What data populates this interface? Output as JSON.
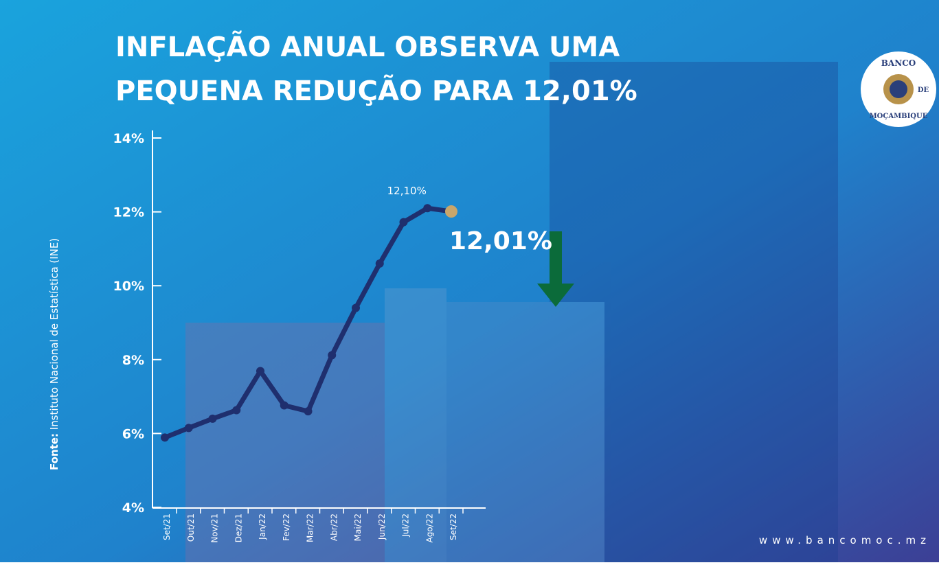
{
  "chart_data": {
    "type": "line",
    "title": [
      "INFLAÇÃO ANUAL OBSERVA UMA",
      "PEQUENA REDUÇÃO PARA 12,01%"
    ],
    "categories": [
      "Set/21",
      "Out/21",
      "Nov/21",
      "Dez/21",
      "Jan/22",
      "Fev/22",
      "Mar/22",
      "Abr/22",
      "Mai/22",
      "Jun/22",
      "Jul/22",
      "Ago/22",
      "Set/22"
    ],
    "values": [
      5.89,
      6.15,
      6.4,
      6.63,
      7.69,
      6.76,
      6.6,
      8.12,
      9.4,
      10.6,
      11.72,
      12.1,
      12.01
    ],
    "value_labels": [
      null,
      null,
      null,
      null,
      null,
      null,
      null,
      null,
      null,
      null,
      null,
      "12,10%",
      "12,01%"
    ],
    "color": "#1f2f6e",
    "highlight_color": "#c9a66b",
    "ylim": [
      4,
      14
    ],
    "yticks": [
      {
        "value": 4,
        "label": "4%"
      },
      {
        "value": 6,
        "label": "6%"
      },
      {
        "value": 8,
        "label": "8%"
      },
      {
        "value": 10,
        "label": "10%"
      },
      {
        "value": 12,
        "label": "12%"
      },
      {
        "value": 14,
        "label": "14%"
      }
    ],
    "source_label": "Fonte:",
    "source": "Instituto Nacional de Estatística (INE)",
    "logo": [
      "BANCO",
      "DE",
      "MOÇAMBIQUE"
    ],
    "website": "www.bancomoc.mz"
  }
}
